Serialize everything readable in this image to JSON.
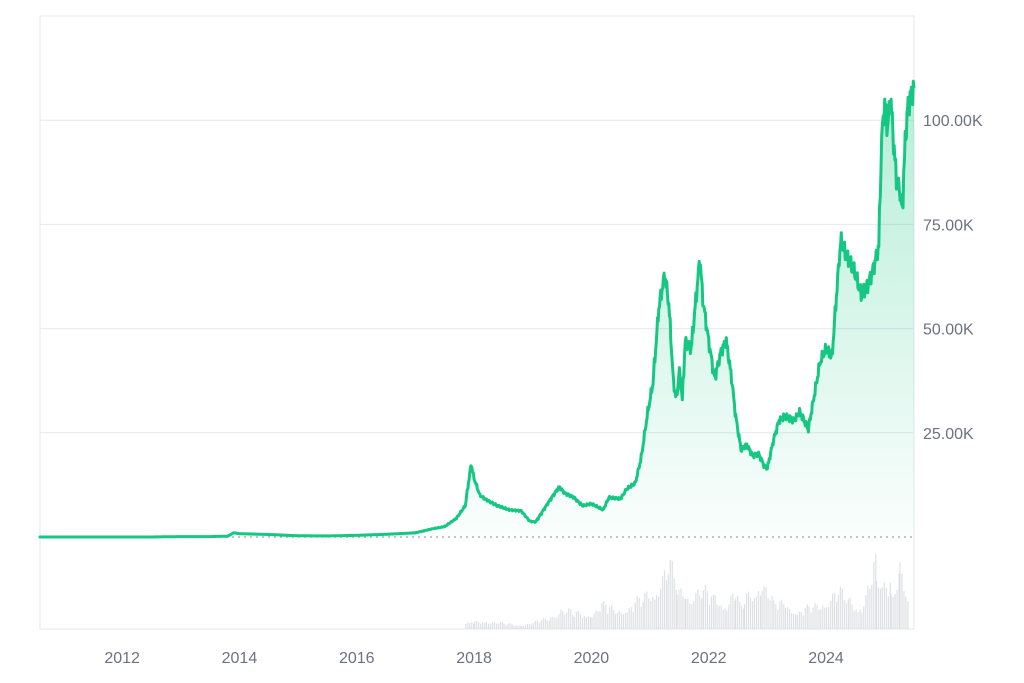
{
  "chart_data": {
    "type": "area",
    "title": "",
    "xlabel": "",
    "ylabel": "",
    "x_ticks": [
      "2012",
      "2014",
      "2016",
      "2018",
      "2020",
      "2022",
      "2024"
    ],
    "y_ticks": [
      "25.00K",
      "50.00K",
      "75.00K",
      "100.00K"
    ],
    "y_tick_values": [
      25000,
      50000,
      75000,
      100000
    ],
    "xlim": [
      2010.6,
      2025.5
    ],
    "ylim": [
      0,
      125000
    ],
    "grid": "horizontal",
    "baseline_dotted": true,
    "colors": {
      "line": "#16c784",
      "area_top": "#16c784",
      "grid": "#e6e8ec",
      "axis_text": "#6b7280",
      "frame": "#e5e7eb",
      "volume": "#d1d5db",
      "baseline": "#9ca3af"
    },
    "series": [
      {
        "x": [
          2010.6,
          2011.0,
          2011.5,
          2012.0,
          2012.5,
          2013.0,
          2013.5,
          2013.8,
          2013.9,
          2014.0,
          2014.5,
          2015.0,
          2015.5,
          2016.0,
          2016.5,
          2017.0,
          2017.3,
          2017.5,
          2017.7,
          2017.85,
          2017.95,
          2018.0,
          2018.1,
          2018.2,
          2018.4,
          2018.6,
          2018.8,
          2018.95,
          2019.05,
          2019.3,
          2019.45,
          2019.55,
          2019.7,
          2019.85,
          2020.0,
          2020.2,
          2020.3,
          2020.5,
          2020.6,
          2020.75,
          2020.85,
          2020.95,
          2021.05,
          2021.15,
          2021.25,
          2021.32,
          2021.4,
          2021.45,
          2021.5,
          2021.55,
          2021.6,
          2021.7,
          2021.85,
          2021.9,
          2022.0,
          2022.1,
          2022.2,
          2022.3,
          2022.4,
          2022.45,
          2022.55,
          2022.65,
          2022.75,
          2022.85,
          2022.95,
          2023.0,
          2023.1,
          2023.2,
          2023.3,
          2023.45,
          2023.55,
          2023.7,
          2023.8,
          2023.9,
          2024.0,
          2024.1,
          2024.2,
          2024.25,
          2024.35,
          2024.5,
          2024.6,
          2024.7,
          2024.8,
          2024.9,
          2024.95,
          2025.0,
          2025.05,
          2025.1,
          2025.15,
          2025.2,
          2025.25,
          2025.3,
          2025.35,
          2025.4,
          2025.5
        ],
        "values": [
          0,
          0,
          0,
          0,
          0,
          100,
          100,
          200,
          1000,
          800,
          600,
          300,
          250,
          400,
          650,
          1000,
          2000,
          2500,
          4500,
          7500,
          17500,
          14000,
          10000,
          9000,
          7500,
          6500,
          6300,
          3800,
          3600,
          9000,
          12000,
          10500,
          9500,
          7500,
          8000,
          6500,
          9500,
          9200,
          11500,
          13000,
          19000,
          29000,
          37000,
          55000,
          63000,
          56000,
          37000,
          33000,
          40000,
          33000,
          47000,
          45000,
          67000,
          57000,
          47000,
          38000,
          44000,
          47000,
          37000,
          30000,
          21000,
          22000,
          19500,
          20000,
          17000,
          16500,
          23000,
          28000,
          29000,
          28000,
          30000,
          26000,
          34000,
          42000,
          45000,
          43000,
          62000,
          71000,
          67000,
          63000,
          58000,
          60000,
          64000,
          70000,
          96000,
          104000,
          98000,
          106000,
          95000,
          86000,
          84000,
          78000,
          95000,
          104000,
          108000
        ]
      }
    ],
    "volume": [
      {
        "x": 2017.85,
        "v": 0.08
      },
      {
        "x": 2017.95,
        "v": 0.14
      },
      {
        "x": 2018.0,
        "v": 0.1
      },
      {
        "x": 2018.2,
        "v": 0.12
      },
      {
        "x": 2018.5,
        "v": 0.08
      },
      {
        "x": 2018.8,
        "v": 0.06
      },
      {
        "x": 2019.0,
        "v": 0.09
      },
      {
        "x": 2019.3,
        "v": 0.18
      },
      {
        "x": 2019.5,
        "v": 0.3
      },
      {
        "x": 2019.7,
        "v": 0.22
      },
      {
        "x": 2020.0,
        "v": 0.25
      },
      {
        "x": 2020.2,
        "v": 0.35
      },
      {
        "x": 2020.4,
        "v": 0.28
      },
      {
        "x": 2020.6,
        "v": 0.32
      },
      {
        "x": 2020.9,
        "v": 0.45
      },
      {
        "x": 2021.1,
        "v": 0.65
      },
      {
        "x": 2021.3,
        "v": 0.95
      },
      {
        "x": 2021.45,
        "v": 0.7
      },
      {
        "x": 2021.6,
        "v": 0.5
      },
      {
        "x": 2021.9,
        "v": 0.55
      },
      {
        "x": 2022.1,
        "v": 0.45
      },
      {
        "x": 2022.3,
        "v": 0.4
      },
      {
        "x": 2022.45,
        "v": 0.6
      },
      {
        "x": 2022.6,
        "v": 0.42
      },
      {
        "x": 2022.9,
        "v": 0.75
      },
      {
        "x": 2023.1,
        "v": 0.35
      },
      {
        "x": 2023.3,
        "v": 0.42
      },
      {
        "x": 2023.5,
        "v": 0.25
      },
      {
        "x": 2023.7,
        "v": 0.3
      },
      {
        "x": 2023.9,
        "v": 0.38
      },
      {
        "x": 2024.0,
        "v": 0.45
      },
      {
        "x": 2024.2,
        "v": 0.55
      },
      {
        "x": 2024.4,
        "v": 0.4
      },
      {
        "x": 2024.6,
        "v": 0.35
      },
      {
        "x": 2024.85,
        "v": 0.95
      },
      {
        "x": 2024.95,
        "v": 0.7
      },
      {
        "x": 2025.1,
        "v": 0.6
      },
      {
        "x": 2025.25,
        "v": 0.85
      },
      {
        "x": 2025.4,
        "v": 0.55
      }
    ]
  }
}
